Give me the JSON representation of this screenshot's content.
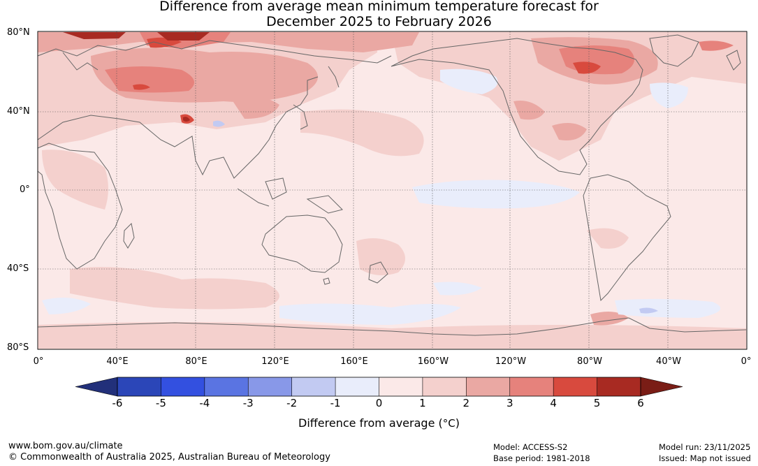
{
  "title_line1": "Difference from average mean minimum temperature forecast for",
  "title_line2": "December 2025 to February 2026",
  "map": {
    "lat_labels": [
      "80°N",
      "40°N",
      "0°",
      "40°S",
      "80°S"
    ],
    "lon_labels": [
      "0°",
      "40°E",
      "80°E",
      "120°E",
      "160°E",
      "160°W",
      "120°W",
      "80°W",
      "40°W",
      "0°"
    ],
    "background_color": "#fbe9e8",
    "features": [
      {
        "name": "warm-anomaly-siberia",
        "level": "2 to 4"
      },
      {
        "name": "warm-anomaly-northern-canada",
        "level": "3 to 5"
      },
      {
        "name": "cool-anomaly-equatorial-pacific",
        "level": "-1 to 0"
      },
      {
        "name": "cool-anomaly-southern-ocean",
        "level": "-1 to 0"
      }
    ]
  },
  "colorbar": {
    "ticks": [
      "-6",
      "-5",
      "-4",
      "-3",
      "-2",
      "-1",
      "0",
      "1",
      "2",
      "3",
      "4",
      "5",
      "6"
    ],
    "colors": [
      "#22307a",
      "#2b46b8",
      "#3350e0",
      "#5a74e2",
      "#8898e8",
      "#c2caf2",
      "#e9edfb",
      "#fbe9e8",
      "#f4d0cd",
      "#eaa8a3",
      "#e6827c",
      "#d84a3e",
      "#a82a22",
      "#7a1d16"
    ],
    "label": "Difference from average (°C)",
    "label_prefix": "Difference from average (",
    "label_unit": "°C",
    "label_suffix": ")"
  },
  "footer": {
    "url": "www.bom.gov.au/climate",
    "copyright": "© Commonwealth of Australia 2025, Australian Bureau of Meteorology",
    "model": "Model: ACCESS-S2",
    "base_period": "Base period: 1981-2018",
    "model_run": "Model run: 23/11/2025",
    "issued": "Issued: Map not issued"
  }
}
